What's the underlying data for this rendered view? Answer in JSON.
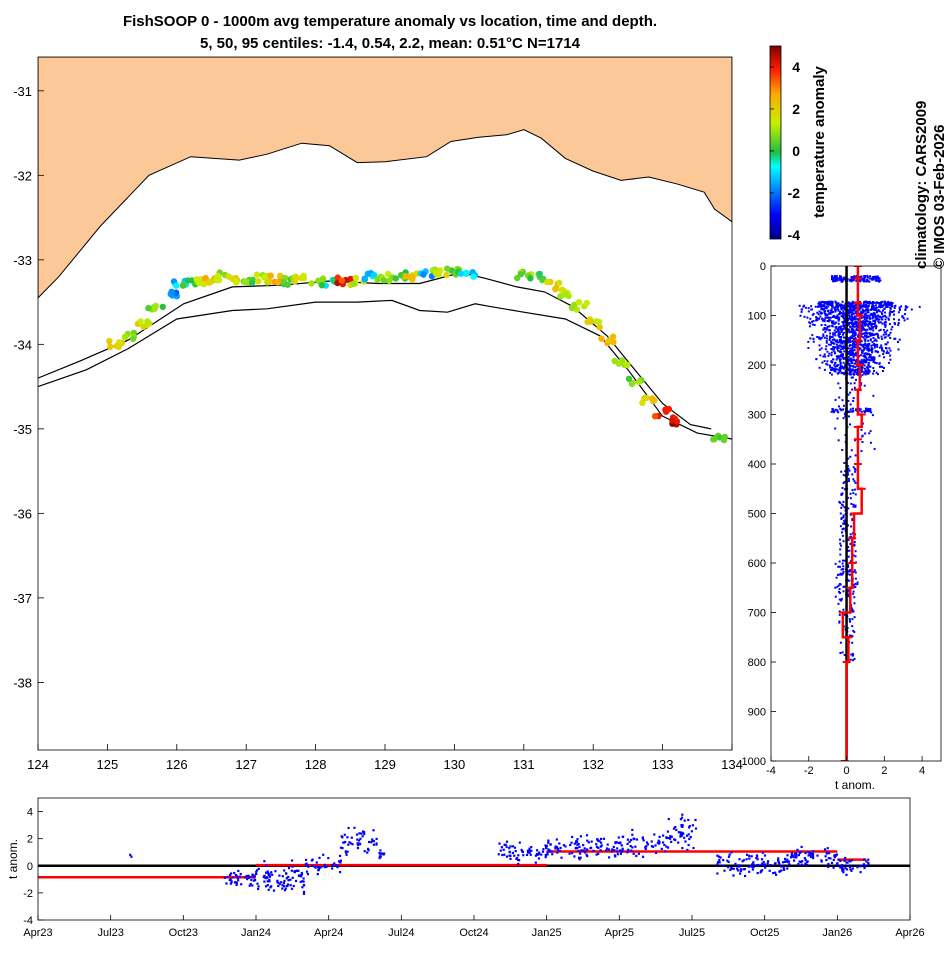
{
  "figure": {
    "title": "FishSOOP 0 - 1000m avg temperature anomaly vs location, time and depth.",
    "subtitle": "5, 50, 95 centiles: -1.4, 0.54, 2.2, mean: 0.51°C N=1714",
    "side_text_1": "climatology: CARS2009",
    "side_text_2": "© IMOS 03-Feb-2026"
  },
  "colors": {
    "land": "#fcc897",
    "coast": "#000000",
    "profile_points": "#0000ff",
    "mean_line": "#ff0000",
    "zero_line": "#000000"
  },
  "chart_data": [
    {
      "type": "scatter",
      "name": "map",
      "title": "",
      "xlabel": "",
      "ylabel": "",
      "xlim": [
        124,
        134
      ],
      "ylim": [
        -38.8,
        -30.6
      ],
      "x_ticks": [
        "124",
        "125",
        "126",
        "127",
        "128",
        "129",
        "130",
        "131",
        "132",
        "133",
        "134"
      ],
      "y_ticks": [
        "-31",
        "-32",
        "-33",
        "-34",
        "-35",
        "-36",
        "-37",
        "-38"
      ],
      "coastline": [
        [
          124,
          -33.45
        ],
        [
          124.3,
          -33.2
        ],
        [
          124.9,
          -32.6
        ],
        [
          125.6,
          -32.0
        ],
        [
          126.2,
          -31.78
        ],
        [
          126.9,
          -31.82
        ],
        [
          127.3,
          -31.75
        ],
        [
          127.8,
          -31.62
        ],
        [
          128.2,
          -31.65
        ],
        [
          128.6,
          -31.85
        ],
        [
          129.0,
          -31.84
        ],
        [
          129.6,
          -31.78
        ],
        [
          129.95,
          -31.6
        ],
        [
          130.35,
          -31.55
        ],
        [
          130.75,
          -31.52
        ],
        [
          131.0,
          -31.46
        ],
        [
          131.25,
          -31.56
        ],
        [
          131.6,
          -31.8
        ],
        [
          132.0,
          -31.95
        ],
        [
          132.4,
          -32.06
        ],
        [
          132.8,
          -32.02
        ],
        [
          133.2,
          -32.1
        ],
        [
          133.6,
          -32.2
        ],
        [
          133.75,
          -32.4
        ],
        [
          134,
          -32.55
        ]
      ],
      "isobath_shallow": [
        [
          124,
          -34.4
        ],
        [
          124.6,
          -34.2
        ],
        [
          125.3,
          -33.95
        ],
        [
          126.1,
          -33.52
        ],
        [
          126.8,
          -33.32
        ],
        [
          127.5,
          -33.3
        ],
        [
          128.2,
          -33.25
        ],
        [
          128.9,
          -33.28
        ],
        [
          129.5,
          -33.28
        ],
        [
          130.1,
          -33.15
        ],
        [
          130.45,
          -33.22
        ],
        [
          130.9,
          -33.32
        ],
        [
          131.3,
          -33.38
        ],
        [
          131.7,
          -33.55
        ],
        [
          132.2,
          -33.9
        ],
        [
          132.6,
          -34.3
        ],
        [
          133.0,
          -34.7
        ],
        [
          133.4,
          -34.95
        ],
        [
          133.7,
          -35.0
        ]
      ],
      "isobath_deep": [
        [
          124,
          -34.5
        ],
        [
          124.7,
          -34.3
        ],
        [
          125.3,
          -34.05
        ],
        [
          126.0,
          -33.7
        ],
        [
          126.8,
          -33.6
        ],
        [
          127.3,
          -33.58
        ],
        [
          128.0,
          -33.5
        ],
        [
          128.6,
          -33.5
        ],
        [
          129.1,
          -33.48
        ],
        [
          129.5,
          -33.6
        ],
        [
          129.9,
          -33.62
        ],
        [
          130.3,
          -33.52
        ],
        [
          130.5,
          -33.55
        ],
        [
          131.0,
          -33.62
        ],
        [
          131.6,
          -33.7
        ],
        [
          132.1,
          -33.9
        ],
        [
          132.5,
          -34.3
        ],
        [
          133.0,
          -34.85
        ],
        [
          133.5,
          -35.05
        ],
        [
          134,
          -35.12
        ]
      ],
      "anomaly_points": [
        [
          125.1,
          -34.0,
          1.8
        ],
        [
          125.3,
          -33.9,
          1.0
        ],
        [
          125.5,
          -33.75,
          1.6
        ],
        [
          125.7,
          -33.55,
          0.6
        ],
        [
          125.9,
          -33.4,
          -1.6
        ],
        [
          126.05,
          -33.3,
          -1.2
        ],
        [
          126.2,
          -33.28,
          0.2
        ],
        [
          126.35,
          -33.25,
          1.5
        ],
        [
          126.5,
          -33.22,
          2.2
        ],
        [
          126.65,
          -33.2,
          0.9
        ],
        [
          126.8,
          -33.22,
          1.9
        ],
        [
          127.0,
          -33.25,
          0.4
        ],
        [
          127.2,
          -33.22,
          1.2
        ],
        [
          127.4,
          -33.22,
          2.4
        ],
        [
          127.6,
          -33.25,
          0.5
        ],
        [
          127.8,
          -33.23,
          1.7
        ],
        [
          128.0,
          -33.25,
          0.8
        ],
        [
          128.2,
          -33.26,
          -0.6
        ],
        [
          128.4,
          -33.24,
          3.9
        ],
        [
          128.6,
          -33.25,
          1.4
        ],
        [
          128.8,
          -33.2,
          -1.0
        ],
        [
          129.0,
          -33.2,
          1.1
        ],
        [
          129.2,
          -33.18,
          0.3
        ],
        [
          129.4,
          -33.2,
          2.0
        ],
        [
          129.6,
          -33.17,
          -1.4
        ],
        [
          129.8,
          -33.15,
          1.3
        ],
        [
          130.0,
          -33.15,
          0.6
        ],
        [
          130.2,
          -33.15,
          -0.9
        ],
        [
          131.0,
          -33.18,
          0.7
        ],
        [
          131.2,
          -33.2,
          0.2
        ],
        [
          131.4,
          -33.3,
          1.9
        ],
        [
          131.6,
          -33.4,
          1.3
        ],
        [
          131.8,
          -33.55,
          0.9
        ],
        [
          132.0,
          -33.75,
          1.6
        ],
        [
          132.2,
          -33.95,
          2.1
        ],
        [
          132.4,
          -34.2,
          1.0
        ],
        [
          132.6,
          -34.45,
          0.5
        ],
        [
          132.8,
          -34.65,
          2.0
        ],
        [
          133.0,
          -34.8,
          3.5
        ],
        [
          133.2,
          -34.9,
          4.5
        ],
        [
          133.8,
          -35.1,
          0.4
        ]
      ]
    },
    {
      "type": "colorbar",
      "label": "temperature anomaly",
      "range": [
        -4.2,
        5.0
      ],
      "ticks": [
        "4",
        "2",
        "0",
        "-2",
        "-4"
      ]
    },
    {
      "type": "scatter",
      "name": "depth_profile",
      "xlabel": "t anom.",
      "ylabel": "",
      "xlim": [
        -4,
        5
      ],
      "ylim": [
        1000,
        0
      ],
      "x_ticks": [
        "-4",
        "-2",
        "0",
        "2",
        "4"
      ],
      "y_ticks": [
        "0",
        "100",
        "200",
        "300",
        "400",
        "500",
        "600",
        "700",
        "800",
        "900",
        "1000"
      ],
      "mean_profile": {
        "depth": [
          0,
          25,
          75,
          100,
          150,
          200,
          250,
          300,
          325,
          350,
          400,
          450,
          500,
          550,
          600,
          650,
          700,
          750,
          800,
          1000
        ],
        "value": [
          0.6,
          0.6,
          0.6,
          0.7,
          0.6,
          0.7,
          0.6,
          0.8,
          0.6,
          0.6,
          0.6,
          0.8,
          0.4,
          0.3,
          0.3,
          0.2,
          -0.2,
          0.1,
          0.0,
          -0.1
        ]
      }
    },
    {
      "type": "scatter",
      "name": "time_series",
      "xlabel": "",
      "ylabel": "t anom.",
      "xlim": [
        0,
        36
      ],
      "ylim": [
        -4,
        5
      ],
      "x_ticks": [
        "Apr23",
        "Jul23",
        "Oct23",
        "Jan24",
        "Apr24",
        "Jul24",
        "Oct24",
        "Jan25",
        "Apr25",
        "Jul25",
        "Oct25",
        "Jan26",
        "Apr26"
      ],
      "y_ticks": [
        "-4",
        "-2",
        "0",
        "2",
        "4"
      ],
      "mean_segments": [
        {
          "from": 0,
          "to": 9,
          "value": -0.85
        },
        {
          "from": 9,
          "to": 21,
          "value": 0.05
        },
        {
          "from": 21,
          "to": 33,
          "value": 1.05
        },
        {
          "from": 33,
          "to": 34.2,
          "value": 0.45
        }
      ],
      "point_clusters": [
        {
          "from": 3.8,
          "to": 3.9,
          "mean": 0.7,
          "spread": 0.1,
          "n": 2
        },
        {
          "from": 7.7,
          "to": 9.0,
          "mean": -1.0,
          "spread": 0.4,
          "n": 40
        },
        {
          "from": 9.0,
          "to": 11.0,
          "mean": -1.1,
          "spread": 0.7,
          "n": 90
        },
        {
          "from": 11.0,
          "to": 12.5,
          "mean": 0.1,
          "spread": 0.4,
          "n": 40
        },
        {
          "from": 12.5,
          "to": 14.0,
          "mean": 1.7,
          "spread": 0.6,
          "n": 50
        },
        {
          "from": 14.0,
          "to": 14.4,
          "mean": 0.8,
          "spread": 0.3,
          "n": 10
        },
        {
          "from": 19.0,
          "to": 21.0,
          "mean": 1.0,
          "spread": 0.4,
          "n": 60
        },
        {
          "from": 21.0,
          "to": 24.0,
          "mean": 1.4,
          "spread": 0.5,
          "n": 100
        },
        {
          "from": 24.0,
          "to": 26.0,
          "mean": 1.5,
          "spread": 0.6,
          "n": 60
        },
        {
          "from": 26.0,
          "to": 27.2,
          "mean": 2.5,
          "spread": 0.7,
          "n": 50
        },
        {
          "from": 28.0,
          "to": 31.0,
          "mean": 0.1,
          "spread": 0.5,
          "n": 100
        },
        {
          "from": 31.0,
          "to": 33.0,
          "mean": 0.6,
          "spread": 0.5,
          "n": 70
        },
        {
          "from": 33.0,
          "to": 34.3,
          "mean": 0.1,
          "spread": 0.5,
          "n": 40
        }
      ]
    }
  ]
}
